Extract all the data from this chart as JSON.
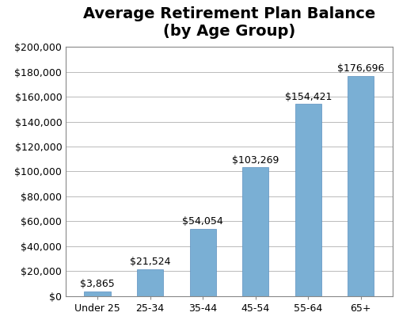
{
  "title": "Average Retirement Plan Balance\n(by Age Group)",
  "categories": [
    "Under 25",
    "25-34",
    "35-44",
    "45-54",
    "55-64",
    "65+"
  ],
  "values": [
    3865,
    21524,
    54054,
    103269,
    154421,
    176696
  ],
  "labels": [
    "$3,865",
    "$21,524",
    "$54,054",
    "$103,269",
    "$154,421",
    "$176,696"
  ],
  "bar_color": "#7aafd4",
  "bar_edge_color": "#5a8fbf",
  "ylim": [
    0,
    200000
  ],
  "yticks": [
    0,
    20000,
    40000,
    60000,
    80000,
    100000,
    120000,
    140000,
    160000,
    180000,
    200000
  ],
  "ytick_labels": [
    "$0",
    "$20,000",
    "$40,000",
    "$60,000",
    "$80,000",
    "$100,000",
    "$120,000",
    "$140,000",
    "$160,000",
    "$180,000",
    "$200,000"
  ],
  "background_color": "#ffffff",
  "grid_color": "#b0b0b0",
  "spine_color": "#888888",
  "title_fontsize": 14,
  "tick_fontsize": 9,
  "label_fontsize": 9,
  "bar_width": 0.5,
  "figure_width": 5.04,
  "figure_height": 4.04,
  "figure_dpi": 100
}
